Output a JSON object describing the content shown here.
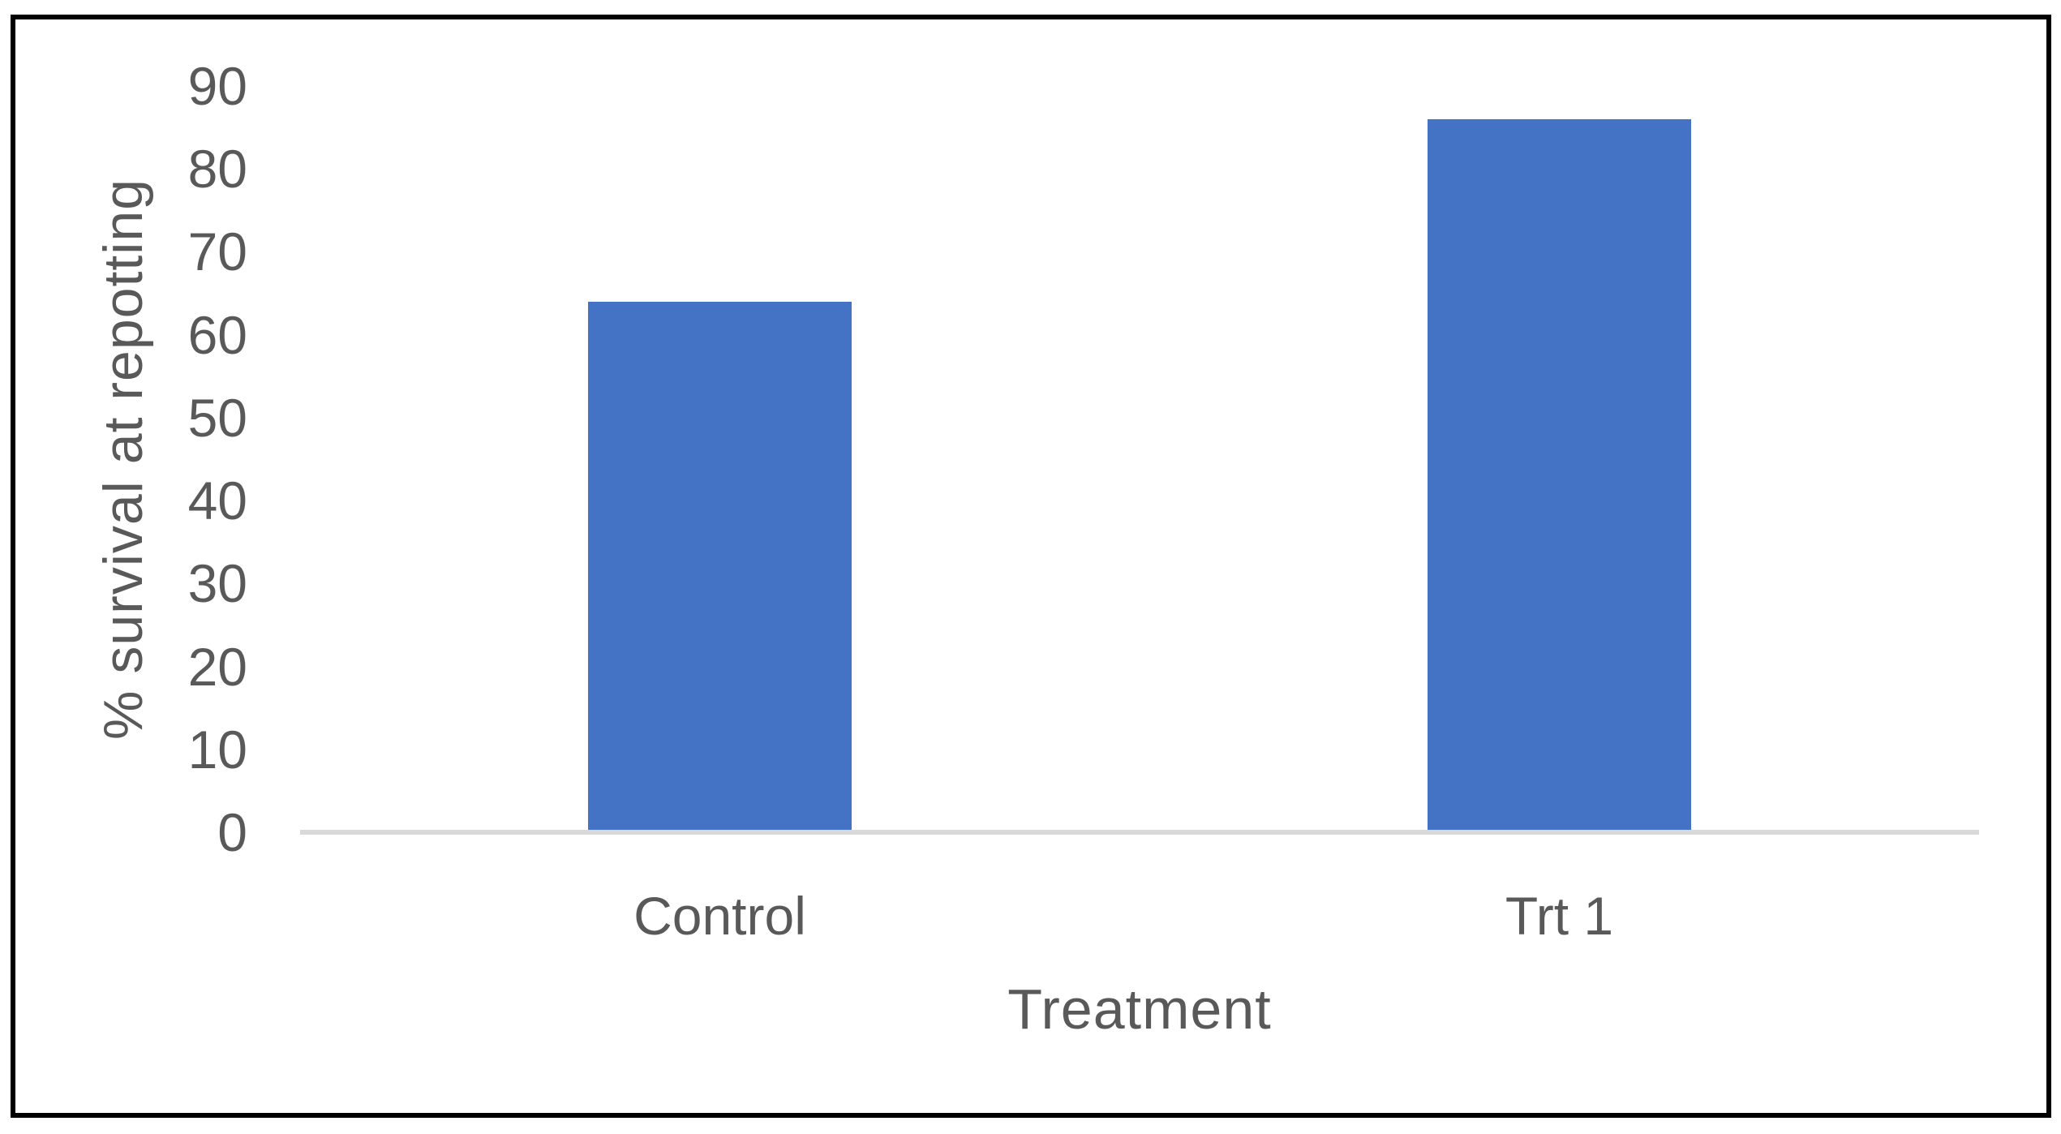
{
  "chart_data": {
    "type": "bar",
    "categories": [
      "Control",
      "Trt 1"
    ],
    "values": [
      64,
      86
    ],
    "title": "",
    "xlabel": "Treatment",
    "ylabel": "% survival at repotting",
    "ylim": [
      0,
      90
    ],
    "yticks": [
      0,
      10,
      20,
      30,
      40,
      50,
      60,
      70,
      80,
      90
    ],
    "grid": false,
    "legend": false,
    "colors": {
      "bar": "#4472C4",
      "text": "#595959",
      "axis_line": "#D9D9D9",
      "border": "#000000",
      "background": "#FFFFFF"
    }
  }
}
